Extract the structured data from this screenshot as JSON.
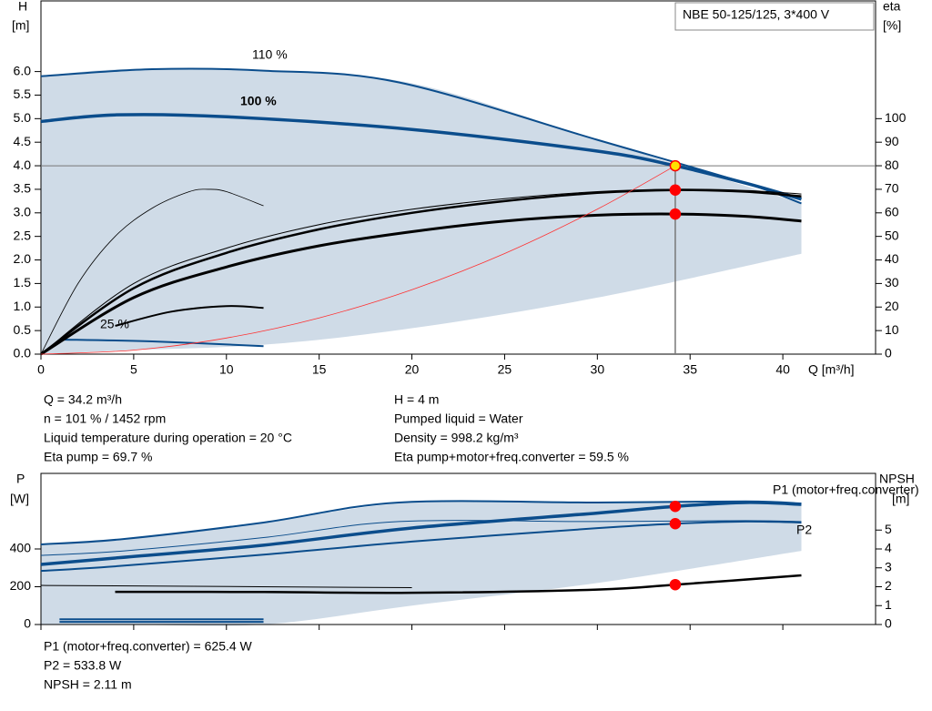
{
  "chart_data": [
    {
      "type": "line",
      "title": "NBE 50-125/125, 3*400 V",
      "ylabel": "H",
      "yunit": "[m]",
      "y2label": "eta",
      "y2unit": "[%]",
      "xlabel": "Q [m³/h]",
      "xlim": [
        0,
        45
      ],
      "xticks": [
        0,
        5,
        10,
        15,
        20,
        25,
        30,
        35,
        40
      ],
      "ylim": [
        0,
        7.5
      ],
      "yticks": [
        {
          "value": 0,
          "label": "0.0"
        },
        {
          "value": 0.5,
          "label": "0.5"
        },
        {
          "value": 1,
          "label": "1.0"
        },
        {
          "value": 1.5,
          "label": "1.5"
        },
        {
          "value": 2,
          "label": "2.0"
        },
        {
          "value": 2.5,
          "label": "2.5"
        },
        {
          "value": 3,
          "label": "3.0"
        },
        {
          "value": 3.5,
          "label": "3.5"
        },
        {
          "value": 4,
          "label": "4.0"
        },
        {
          "value": 4.5,
          "label": "4.5"
        },
        {
          "value": 5,
          "label": "5.0"
        },
        {
          "value": 5.5,
          "label": "5.5"
        },
        {
          "value": 6,
          "label": "6.0"
        }
      ],
      "y2lim": [
        0,
        150
      ],
      "y2ticks": [
        0,
        10,
        20,
        30,
        40,
        50,
        60,
        70,
        80,
        90,
        100
      ],
      "band": {
        "color": "#cfdbe7",
        "x": [
          0,
          4.5,
          12,
          20,
          30,
          41
        ],
        "upper": [
          5.9,
          6.05,
          6.02,
          5.75,
          4.55,
          3.2
        ],
        "lower": [
          0,
          0.08,
          0.2,
          0.55,
          1.2,
          2.13
        ]
      },
      "series": [
        {
          "name": "110 %",
          "color": "#0b4d8c",
          "width": 2,
          "x": [
            0,
            6,
            12,
            19.3,
            30,
            38,
            41
          ],
          "values": [
            5.9,
            6.05,
            6.02,
            5.77,
            4.55,
            3.63,
            3.2
          ]
        },
        {
          "name": "100 %",
          "color": "#0b4d8c",
          "width": 3.5,
          "x": [
            0,
            4,
            10,
            20,
            30,
            34.2,
            38,
            41
          ],
          "values": [
            4.94,
            5.08,
            5.04,
            4.77,
            4.31,
            4.0,
            3.63,
            3.29
          ]
        },
        {
          "name": "25 %",
          "color": "#0b4d8c",
          "width": 2,
          "x": [
            1,
            6,
            12
          ],
          "values": [
            0.31,
            0.27,
            0.17
          ]
        },
        {
          "color": "#000000",
          "width": 1,
          "axis": "y2",
          "x": [
            0,
            5,
            10,
            15,
            20,
            25,
            30,
            34.2,
            38,
            41
          ],
          "values": [
            0,
            30,
            45,
            55,
            61.5,
            66,
            69,
            70,
            69.5,
            68
          ]
        },
        {
          "color": "#000000",
          "width": 2.5,
          "axis": "y2",
          "x": [
            0,
            5,
            10,
            15,
            20,
            25,
            30,
            34.2,
            38,
            41
          ],
          "values": [
            0,
            28,
            43,
            53,
            60,
            65,
            68.5,
            69.7,
            69,
            67
          ]
        },
        {
          "color": "#000000",
          "width": 3,
          "axis": "y2",
          "x": [
            0,
            5,
            10,
            15,
            20,
            25,
            30,
            34.2,
            38,
            41
          ],
          "values": [
            0,
            24,
            37,
            46,
            52,
            56.5,
            59,
            59.5,
            58.5,
            56.5
          ]
        },
        {
          "color": "#000000",
          "width": 0.8,
          "axis": "y2",
          "x": [
            0,
            2,
            4,
            6,
            8,
            9,
            10,
            12
          ],
          "values": [
            0,
            30,
            50,
            62,
            69,
            70,
            69,
            63
          ]
        },
        {
          "color": "#000000",
          "width": 2,
          "axis": "y2",
          "x": [
            4,
            7,
            10,
            12
          ],
          "values": [
            12,
            18,
            20.4,
            19.6
          ]
        },
        {
          "color": "#ff3030",
          "width": 0.8,
          "x": [
            0,
            5,
            10,
            15,
            20,
            25,
            30,
            34.2
          ],
          "values": [
            0,
            0.085,
            0.342,
            0.769,
            1.368,
            2.137,
            3.078,
            4.0
          ]
        }
      ],
      "points": [
        {
          "x": 34.2,
          "value": 4,
          "color": "#ffe000"
        },
        {
          "x": 34.2,
          "value": 69.7,
          "axis": "y2",
          "color": "#ff0000"
        },
        {
          "x": 34.2,
          "value": 59.5,
          "axis": "y2",
          "color": "#ff0000"
        }
      ],
      "annotations": [
        "Q = 34.2 m³/h",
        "n = 101 % / 1452 rpm",
        "Liquid temperature during operation = 20 °C",
        "Eta pump = 69.7 %",
        "H = 4 m",
        "Pumped liquid = Water",
        "Density = 998.2 kg/m³",
        "Eta pump+motor+freq.converter = 59.5 %"
      ]
    },
    {
      "type": "line",
      "ylabel": "P",
      "yunit": "[W]",
      "y2label": "NPSH",
      "y2unit": "[m]",
      "xlim": [
        0,
        45
      ],
      "ylim": [
        0,
        800
      ],
      "yticks": [
        0,
        200,
        400
      ],
      "y2lim": [
        0,
        8
      ],
      "y2ticks": [
        0,
        1,
        2,
        3,
        4,
        5
      ],
      "band": {
        "color": "#cfdbe7",
        "x": [
          0,
          4.5,
          12,
          20,
          30,
          41
        ],
        "upper": [
          424,
          453,
          540,
          646,
          646,
          641
        ],
        "lower": [
          0,
          0,
          0,
          100,
          220,
          390
        ]
      },
      "series": [
        {
          "color": "#0b4d8c",
          "width": 2,
          "x": [
            0,
            4.5,
            12,
            19.3,
            30,
            38,
            41
          ],
          "values": [
            424,
            453,
            540,
            646,
            646,
            652,
            641
          ]
        },
        {
          "name": "P1 (motor+freq.converter)",
          "color": "#0b4d8c",
          "width": 3.5,
          "x": [
            0,
            4,
            12,
            20,
            30,
            34.2,
            38,
            41
          ],
          "values": [
            318,
            352,
            420,
            511,
            590,
            625.4,
            646,
            636
          ]
        },
        {
          "color": "#0b4d8c",
          "width": 1,
          "x": [
            0,
            4.5,
            12,
            19.3,
            30,
            38,
            41
          ],
          "values": [
            366,
            390,
            460,
            545,
            545,
            550,
            545
          ]
        },
        {
          "name": "P2",
          "color": "#0b4d8c",
          "width": 2,
          "x": [
            0,
            4,
            12,
            20,
            30,
            34.2,
            38,
            41
          ],
          "values": [
            284,
            308,
            370,
            439,
            510,
            533.8,
            545,
            540
          ]
        },
        {
          "color": "#0b4d8c",
          "width": 2,
          "x": [
            1,
            12
          ],
          "values": [
            28,
            28
          ]
        },
        {
          "color": "#0b4d8c",
          "width": 2,
          "x": [
            1,
            12
          ],
          "values": [
            14,
            14
          ]
        },
        {
          "color": "#000000",
          "width": 1,
          "axis": "y2",
          "x": [
            0,
            4,
            20
          ],
          "values": [
            2.07,
            2.05,
            1.95
          ]
        },
        {
          "color": "#000000",
          "width": 2.5,
          "axis": "y2",
          "x": [
            4,
            12,
            20,
            30,
            34.2,
            41
          ],
          "values": [
            1.73,
            1.72,
            1.68,
            1.85,
            2.11,
            2.6
          ]
        }
      ],
      "points": [
        {
          "x": 34.2,
          "value": 625.4,
          "color": "#ff0000"
        },
        {
          "x": 34.2,
          "value": 533.8,
          "color": "#ff0000"
        },
        {
          "x": 34.2,
          "value": 2.11,
          "axis": "y2",
          "color": "#ff0000"
        }
      ],
      "annotations": [
        "P1 (motor+freq.converter) = 625.4 W",
        "P2 = 533.8 W",
        "NPSH = 2.11 m"
      ]
    }
  ]
}
